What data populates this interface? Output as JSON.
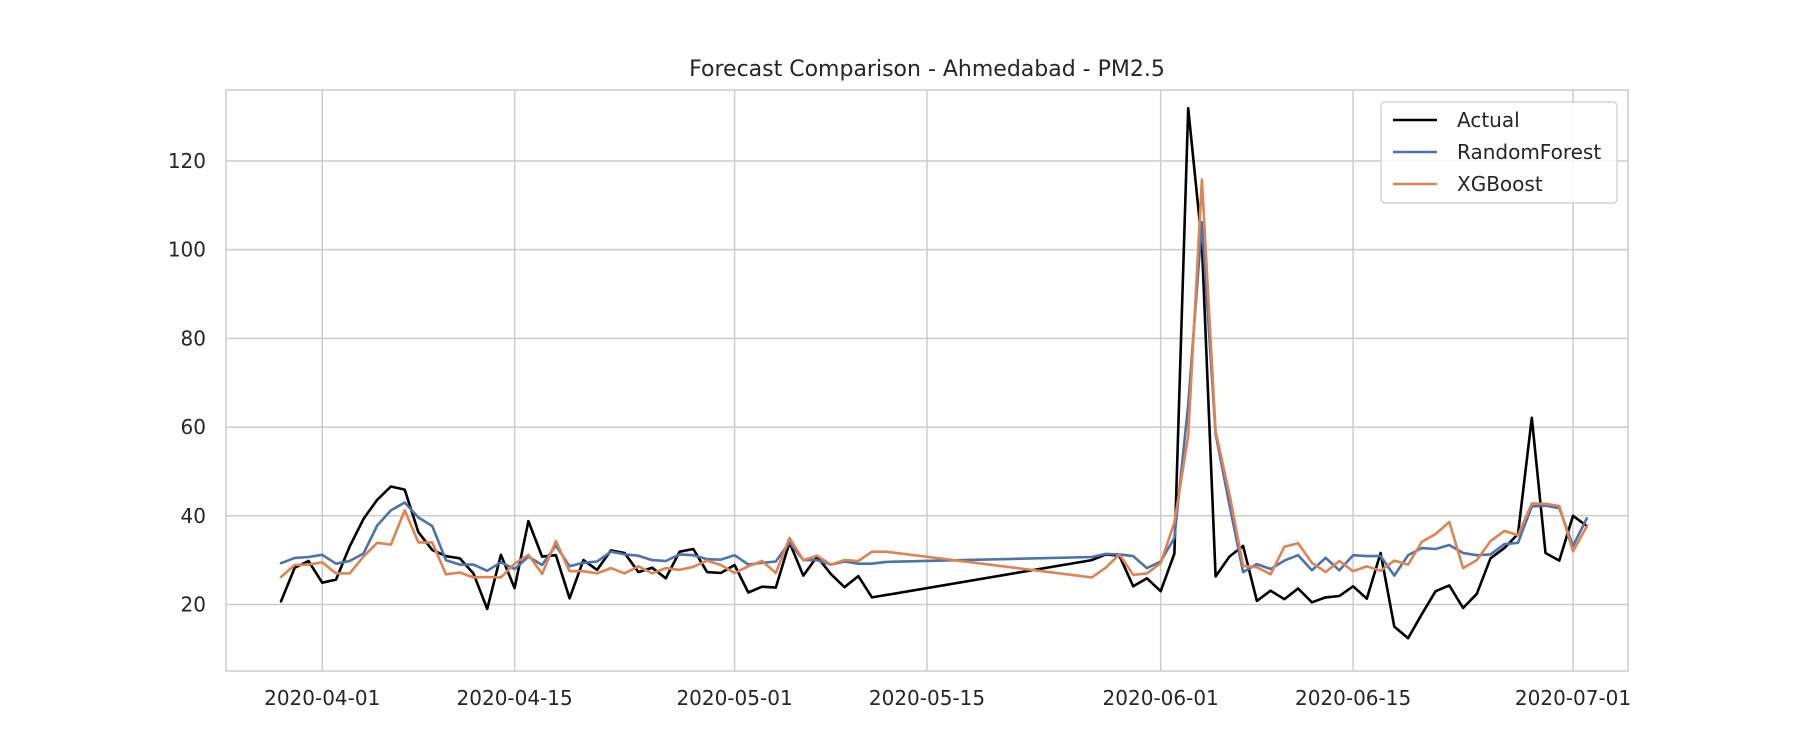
{
  "chart_data": {
    "type": "line",
    "title": "Forecast Comparison - Ahmedabad - PM2.5",
    "xlabel": "",
    "ylabel": "",
    "x_ticks": [
      "2020-04-01",
      "2020-04-15",
      "2020-05-01",
      "2020-05-15",
      "2020-06-01",
      "2020-06-15",
      "2020-07-01"
    ],
    "y_ticks": [
      20,
      40,
      60,
      80,
      100,
      120
    ],
    "xlim": [
      "2020-03-25",
      "2020-07-05"
    ],
    "ylim": [
      5,
      136
    ],
    "grid": true,
    "legend_position": "top-right",
    "series": [
      {
        "name": "Actual",
        "color": "#000000",
        "points": [
          [
            "2020-03-29",
            20.7
          ],
          [
            "2020-03-30",
            28.3
          ],
          [
            "2020-03-31",
            29.8
          ],
          [
            "2020-04-01",
            24.9
          ],
          [
            "2020-04-02",
            25.6
          ],
          [
            "2020-04-03",
            33.1
          ],
          [
            "2020-04-04",
            39.3
          ],
          [
            "2020-04-05",
            43.6
          ],
          [
            "2020-04-06",
            46.6
          ],
          [
            "2020-04-07",
            45.9
          ],
          [
            "2020-04-08",
            36.3
          ],
          [
            "2020-04-09",
            32.3
          ],
          [
            "2020-04-10",
            30.9
          ],
          [
            "2020-04-11",
            30.4
          ],
          [
            "2020-04-12",
            27.0
          ],
          [
            "2020-04-13",
            19.0
          ],
          [
            "2020-04-14",
            31.2
          ],
          [
            "2020-04-15",
            23.7
          ],
          [
            "2020-04-16",
            38.8
          ],
          [
            "2020-04-17",
            30.8
          ],
          [
            "2020-04-18",
            31.1
          ],
          [
            "2020-04-19",
            21.4
          ],
          [
            "2020-04-20",
            30.0
          ],
          [
            "2020-04-21",
            27.8
          ],
          [
            "2020-04-22",
            32.2
          ],
          [
            "2020-04-23",
            31.6
          ],
          [
            "2020-04-24",
            27.3
          ],
          [
            "2020-04-25",
            28.3
          ],
          [
            "2020-04-26",
            25.9
          ],
          [
            "2020-04-27",
            31.9
          ],
          [
            "2020-04-28",
            32.5
          ],
          [
            "2020-04-29",
            27.3
          ],
          [
            "2020-04-30",
            27.1
          ],
          [
            "2020-05-01",
            28.9
          ],
          [
            "2020-05-02",
            22.7
          ],
          [
            "2020-05-03",
            24.0
          ],
          [
            "2020-05-04",
            23.8
          ],
          [
            "2020-05-05",
            34.0
          ],
          [
            "2020-05-06",
            26.5
          ],
          [
            "2020-05-07",
            30.8
          ],
          [
            "2020-05-08",
            26.9
          ],
          [
            "2020-05-09",
            23.9
          ],
          [
            "2020-05-10",
            26.4
          ],
          [
            "2020-05-11",
            21.6
          ],
          [
            "2020-05-27",
            30.0
          ],
          [
            "2020-05-28",
            31.3
          ],
          [
            "2020-05-29",
            31.0
          ],
          [
            "2020-05-30",
            24.1
          ],
          [
            "2020-05-31",
            25.9
          ],
          [
            "2020-06-01",
            23.0
          ],
          [
            "2020-06-02",
            31.5
          ],
          [
            "2020-06-03",
            131.9
          ],
          [
            "2020-06-04",
            101.3
          ],
          [
            "2020-06-05",
            26.3
          ],
          [
            "2020-06-06",
            30.8
          ],
          [
            "2020-06-07",
            33.2
          ],
          [
            "2020-06-08",
            20.8
          ],
          [
            "2020-06-09",
            23.1
          ],
          [
            "2020-06-10",
            21.2
          ],
          [
            "2020-06-11",
            23.6
          ],
          [
            "2020-06-12",
            20.5
          ],
          [
            "2020-06-13",
            21.6
          ],
          [
            "2020-06-14",
            21.9
          ],
          [
            "2020-06-15",
            24.1
          ],
          [
            "2020-06-16",
            21.3
          ],
          [
            "2020-06-17",
            31.6
          ],
          [
            "2020-06-18",
            15.0
          ],
          [
            "2020-06-19",
            12.4
          ],
          [
            "2020-06-20",
            17.8
          ],
          [
            "2020-06-21",
            23.0
          ],
          [
            "2020-06-22",
            24.3
          ],
          [
            "2020-06-23",
            19.2
          ],
          [
            "2020-06-24",
            22.4
          ],
          [
            "2020-06-25",
            30.4
          ],
          [
            "2020-06-26",
            32.7
          ],
          [
            "2020-06-27",
            35.9
          ],
          [
            "2020-06-28",
            62.1
          ],
          [
            "2020-06-29",
            31.6
          ],
          [
            "2020-06-30",
            29.9
          ],
          [
            "2020-07-01",
            40.0
          ],
          [
            "2020-07-02",
            37.7
          ]
        ]
      },
      {
        "name": "RandomForest",
        "color": "#4c72b0",
        "points": [
          [
            "2020-03-29",
            29.3
          ],
          [
            "2020-03-30",
            30.5
          ],
          [
            "2020-03-31",
            30.7
          ],
          [
            "2020-04-01",
            31.2
          ],
          [
            "2020-04-02",
            29.2
          ],
          [
            "2020-04-03",
            29.8
          ],
          [
            "2020-04-04",
            31.5
          ],
          [
            "2020-04-05",
            37.8
          ],
          [
            "2020-04-06",
            41.2
          ],
          [
            "2020-04-07",
            43.0
          ],
          [
            "2020-04-08",
            39.6
          ],
          [
            "2020-04-09",
            37.7
          ],
          [
            "2020-04-10",
            30.0
          ],
          [
            "2020-04-11",
            29.0
          ],
          [
            "2020-04-12",
            29.0
          ],
          [
            "2020-04-13",
            27.6
          ],
          [
            "2020-04-14",
            29.5
          ],
          [
            "2020-04-15",
            28.0
          ],
          [
            "2020-04-16",
            30.8
          ],
          [
            "2020-04-17",
            28.9
          ],
          [
            "2020-04-18",
            33.3
          ],
          [
            "2020-04-19",
            28.6
          ],
          [
            "2020-04-20",
            29.4
          ],
          [
            "2020-04-21",
            29.7
          ],
          [
            "2020-04-22",
            31.9
          ],
          [
            "2020-04-23",
            31.3
          ],
          [
            "2020-04-24",
            31.0
          ],
          [
            "2020-04-25",
            30.0
          ],
          [
            "2020-04-26",
            29.8
          ],
          [
            "2020-04-27",
            31.3
          ],
          [
            "2020-04-28",
            31.1
          ],
          [
            "2020-04-29",
            30.2
          ],
          [
            "2020-04-30",
            30.1
          ],
          [
            "2020-05-01",
            31.1
          ],
          [
            "2020-05-02",
            29.0
          ],
          [
            "2020-05-03",
            29.4
          ],
          [
            "2020-05-04",
            29.7
          ],
          [
            "2020-05-05",
            34.0
          ],
          [
            "2020-05-06",
            30.0
          ],
          [
            "2020-05-07",
            30.0
          ],
          [
            "2020-05-08",
            29.0
          ],
          [
            "2020-05-09",
            29.7
          ],
          [
            "2020-05-10",
            29.2
          ],
          [
            "2020-05-11",
            29.2
          ],
          [
            "2020-05-12",
            29.6
          ],
          [
            "2020-05-27",
            30.7
          ],
          [
            "2020-05-28",
            31.4
          ],
          [
            "2020-05-29",
            31.3
          ],
          [
            "2020-05-30",
            30.9
          ],
          [
            "2020-05-31",
            28.2
          ],
          [
            "2020-06-01",
            29.7
          ],
          [
            "2020-06-02",
            35.0
          ],
          [
            "2020-06-03",
            65.0
          ],
          [
            "2020-06-04",
            106.2
          ],
          [
            "2020-06-05",
            58.5
          ],
          [
            "2020-06-06",
            42.5
          ],
          [
            "2020-06-07",
            27.3
          ],
          [
            "2020-06-08",
            29.1
          ],
          [
            "2020-06-09",
            28.0
          ],
          [
            "2020-06-10",
            29.9
          ],
          [
            "2020-06-11",
            31.1
          ],
          [
            "2020-06-12",
            27.7
          ],
          [
            "2020-06-13",
            30.5
          ],
          [
            "2020-06-14",
            27.7
          ],
          [
            "2020-06-15",
            31.1
          ],
          [
            "2020-06-16",
            30.9
          ],
          [
            "2020-06-17",
            30.9
          ],
          [
            "2020-06-18",
            26.5
          ],
          [
            "2020-06-19",
            31.1
          ],
          [
            "2020-06-20",
            32.7
          ],
          [
            "2020-06-21",
            32.5
          ],
          [
            "2020-06-22",
            33.4
          ],
          [
            "2020-06-23",
            31.6
          ],
          [
            "2020-06-24",
            31.1
          ],
          [
            "2020-06-25",
            31.3
          ],
          [
            "2020-06-26",
            33.6
          ],
          [
            "2020-06-27",
            33.9
          ],
          [
            "2020-06-28",
            42.1
          ],
          [
            "2020-06-29",
            42.3
          ],
          [
            "2020-06-30",
            41.7
          ],
          [
            "2020-07-01",
            33.2
          ],
          [
            "2020-07-02",
            39.4
          ]
        ]
      },
      {
        "name": "XGBoost",
        "color": "#dd8452",
        "points": [
          [
            "2020-03-29",
            26.2
          ],
          [
            "2020-03-30",
            28.9
          ],
          [
            "2020-03-31",
            29.0
          ],
          [
            "2020-04-01",
            29.5
          ],
          [
            "2020-04-02",
            27.0
          ],
          [
            "2020-04-03",
            27.0
          ],
          [
            "2020-04-04",
            30.8
          ],
          [
            "2020-04-05",
            33.9
          ],
          [
            "2020-04-06",
            33.5
          ],
          [
            "2020-04-07",
            41.2
          ],
          [
            "2020-04-08",
            34.0
          ],
          [
            "2020-04-09",
            34.0
          ],
          [
            "2020-04-10",
            26.8
          ],
          [
            "2020-04-11",
            27.2
          ],
          [
            "2020-04-12",
            26.1
          ],
          [
            "2020-04-13",
            26.2
          ],
          [
            "2020-04-14",
            26.1
          ],
          [
            "2020-04-15",
            29.2
          ],
          [
            "2020-04-16",
            31.2
          ],
          [
            "2020-04-17",
            26.9
          ],
          [
            "2020-04-18",
            34.3
          ],
          [
            "2020-04-19",
            27.5
          ],
          [
            "2020-04-20",
            27.5
          ],
          [
            "2020-04-21",
            27.0
          ],
          [
            "2020-04-22",
            28.2
          ],
          [
            "2020-04-23",
            27.0
          ],
          [
            "2020-04-24",
            28.6
          ],
          [
            "2020-04-25",
            27.0
          ],
          [
            "2020-04-26",
            28.2
          ],
          [
            "2020-04-27",
            27.8
          ],
          [
            "2020-04-28",
            28.5
          ],
          [
            "2020-04-29",
            29.9
          ],
          [
            "2020-04-30",
            28.9
          ],
          [
            "2020-05-01",
            27.1
          ],
          [
            "2020-05-02",
            28.6
          ],
          [
            "2020-05-03",
            29.8
          ],
          [
            "2020-05-04",
            27.1
          ],
          [
            "2020-05-05",
            35.0
          ],
          [
            "2020-05-06",
            30.0
          ],
          [
            "2020-05-07",
            31.0
          ],
          [
            "2020-05-08",
            29.0
          ],
          [
            "2020-05-09",
            30.0
          ],
          [
            "2020-05-10",
            29.8
          ],
          [
            "2020-05-11",
            31.9
          ],
          [
            "2020-05-12",
            31.9
          ],
          [
            "2020-05-27",
            26.1
          ],
          [
            "2020-05-28",
            28.3
          ],
          [
            "2020-05-29",
            31.3
          ],
          [
            "2020-05-30",
            26.7
          ],
          [
            "2020-05-31",
            27.0
          ],
          [
            "2020-06-01",
            29.3
          ],
          [
            "2020-06-02",
            38.5
          ],
          [
            "2020-06-03",
            58.0
          ],
          [
            "2020-06-04",
            115.8
          ],
          [
            "2020-06-05",
            59.0
          ],
          [
            "2020-06-06",
            45.0
          ],
          [
            "2020-06-07",
            28.7
          ],
          [
            "2020-06-08",
            28.4
          ],
          [
            "2020-06-09",
            26.8
          ],
          [
            "2020-06-10",
            33.0
          ],
          [
            "2020-06-11",
            33.8
          ],
          [
            "2020-06-12",
            29.4
          ],
          [
            "2020-06-13",
            27.3
          ],
          [
            "2020-06-14",
            29.8
          ],
          [
            "2020-06-15",
            27.5
          ],
          [
            "2020-06-16",
            28.6
          ],
          [
            "2020-06-17",
            27.6
          ],
          [
            "2020-06-18",
            29.9
          ],
          [
            "2020-06-19",
            29.0
          ],
          [
            "2020-06-20",
            34.1
          ],
          [
            "2020-06-21",
            35.9
          ],
          [
            "2020-06-22",
            38.6
          ],
          [
            "2020-06-23",
            28.2
          ],
          [
            "2020-06-24",
            30.0
          ],
          [
            "2020-06-25",
            34.3
          ],
          [
            "2020-06-26",
            36.6
          ],
          [
            "2020-06-27",
            35.6
          ],
          [
            "2020-06-28",
            42.8
          ],
          [
            "2020-06-29",
            42.7
          ],
          [
            "2020-06-30",
            42.2
          ],
          [
            "2020-07-01",
            32.0
          ],
          [
            "2020-07-02",
            37.6
          ]
        ]
      }
    ]
  }
}
